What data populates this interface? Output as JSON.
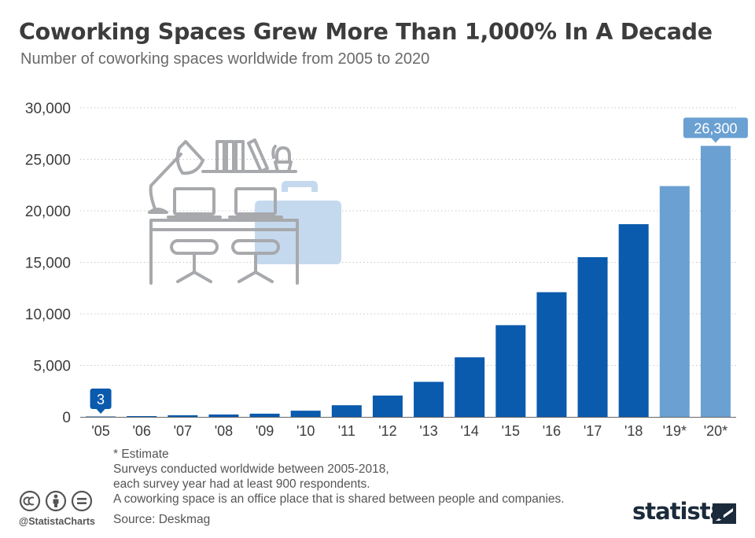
{
  "title": "Coworking Spaces Grew More Than 1,000% In A Decade",
  "subtitle": "Number of coworking spaces worldwide from 2005 to 2020",
  "chart_data": {
    "type": "bar",
    "categories": [
      "'05",
      "'06",
      "'07",
      "'08",
      "'09",
      "'10",
      "'11",
      "'12",
      "'13",
      "'14",
      "'15",
      "'16",
      "'17",
      "'18",
      "'19*",
      "'20*"
    ],
    "values": [
      3,
      75,
      160,
      230,
      310,
      600,
      1130,
      2070,
      3400,
      5780,
      8900,
      12100,
      15500,
      18700,
      22400,
      26300
    ],
    "estimated": [
      false,
      false,
      false,
      false,
      false,
      false,
      false,
      false,
      false,
      false,
      false,
      false,
      false,
      false,
      true,
      true
    ],
    "yticks": [
      0,
      5000,
      10000,
      15000,
      20000,
      25000,
      30000
    ],
    "ytick_labels": [
      "0",
      "5,000",
      "10,000",
      "15,000",
      "20,000",
      "25,000",
      "30,000"
    ],
    "ylim": [
      0,
      30000
    ],
    "grid": "horizontal-dotted",
    "callouts": [
      {
        "index": 0,
        "label": "3"
      },
      {
        "index": 15,
        "label": "26,300"
      }
    ],
    "colors": {
      "bar": "#0a5aad",
      "estimate": "#6aa0d2",
      "grid": "#c8c8c8",
      "axis": "#555555"
    }
  },
  "notes": [
    "* Estimate",
    "Surveys conducted worldwide between 2005-2018,",
    "each survey year had at least 900 respondents.",
    "A coworking space is an office place that is shared between people and companies."
  ],
  "source": "Source: Deskmag",
  "license_icons": [
    "cc-icon",
    "by-icon",
    "nd-icon"
  ],
  "handle": "@StatistaCharts",
  "brand": "statista"
}
